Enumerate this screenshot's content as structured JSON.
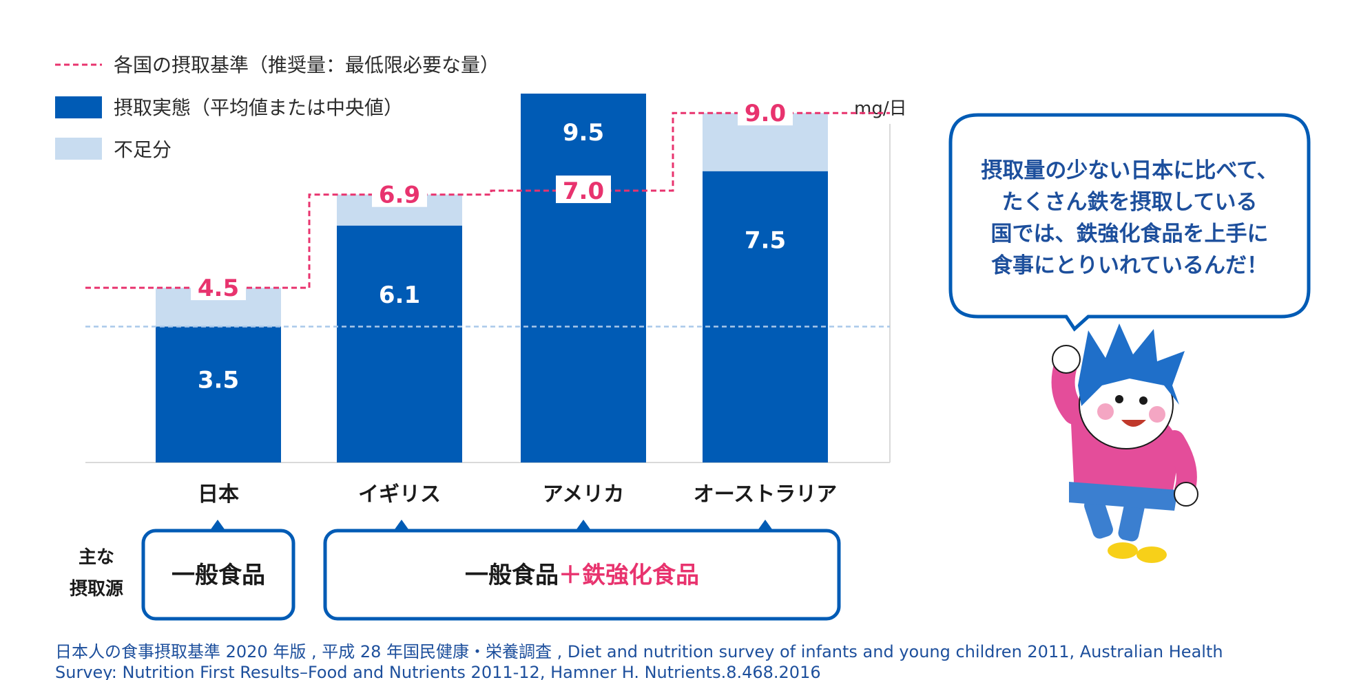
{
  "legend": {
    "requirement": "各国の摂取基準（推奨量：最低限必要な量）",
    "intake": "摂取実態（平均値または中央値）",
    "shortfall": "不足分"
  },
  "unit": "mg/日",
  "colors": {
    "intake": "#005bb5",
    "shortfall": "#c8dcf0",
    "requirement": "#e8336e",
    "reference_line": "#a9c8ea",
    "navy_text": "#1d4f9c"
  },
  "chart_data": {
    "type": "bar",
    "categories": [
      "日本",
      "イギリス",
      "アメリカ",
      "オーストラリア"
    ],
    "series": [
      {
        "name": "摂取実態（平均値または中央値）",
        "values": [
          3.5,
          6.1,
          9.5,
          7.5
        ]
      },
      {
        "name": "各国の摂取基準（推奨量：最低限必要な量）",
        "values": [
          4.5,
          6.9,
          7.0,
          9.0
        ]
      }
    ],
    "intake_labels": [
      "3.5",
      "6.1",
      "9.5",
      "7.5"
    ],
    "requirement_labels": [
      "4.5",
      "6.9",
      "7.0",
      "9.0"
    ],
    "reference_value": 3.5,
    "ylim": [
      0,
      10
    ],
    "ylabel": "mg/日",
    "grid": false,
    "legend_position": "top-left"
  },
  "sources": {
    "label": "主な\n摂取源",
    "label_lines": [
      "主な",
      "摂取源"
    ],
    "japan_box": "一般食品",
    "others_box_part1": "一般食品",
    "others_box_plus": "＋",
    "others_box_part2": "鉄強化食品"
  },
  "speech_bubble": {
    "lines": [
      "摂取量の少ない日本に比べて、",
      "たくさん鉄を摂取している",
      "国では、鉄強化食品を上手に",
      "食事にとりいれているんだ！"
    ]
  },
  "citation": {
    "line1": "日本人の食事摂取基準 2020 年版 , 平成 28 年国民健康・栄養調査 , Diet and nutrition survey of infants and young children 2011, Australian Health",
    "line2": "Survey: Nutrition First Results–Food and Nutrients 2011-12, Hamner H. Nutrients.8.468.2016"
  },
  "character": {
    "icon": "boy-character-icon"
  }
}
